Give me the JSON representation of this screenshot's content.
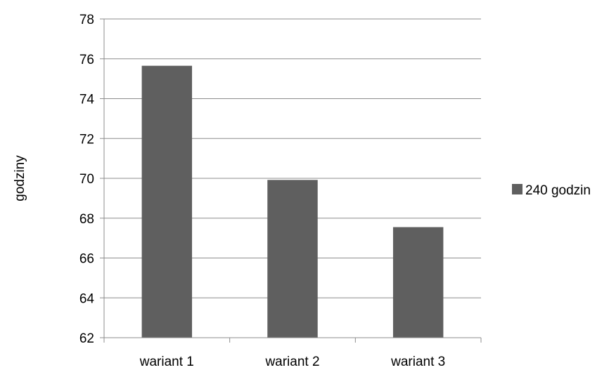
{
  "chart_data": {
    "type": "bar",
    "categories": [
      "wariant 1",
      "wariant 2",
      "wariant 3"
    ],
    "series": [
      {
        "name": "240 godzin",
        "values": [
          75.65,
          69.92,
          67.55
        ],
        "color": "#5f5f5f"
      }
    ],
    "xlabel": "",
    "ylabel": "godziny",
    "ylim": [
      62,
      78
    ],
    "yticks": [
      "62",
      "64",
      "66",
      "68",
      "70",
      "72",
      "74",
      "76",
      "78"
    ],
    "grid": true,
    "legend_position": "right",
    "gridline_color": "#8c8c8c"
  }
}
